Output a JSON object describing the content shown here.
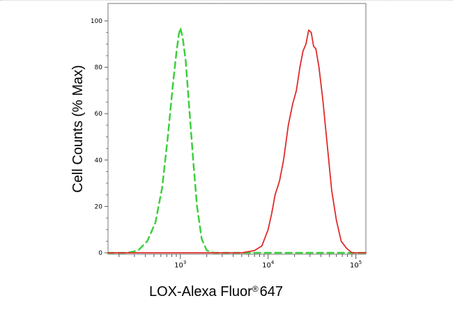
{
  "chart_data": {
    "type": "line",
    "xlabel": {
      "text": "LOX-Alexa Fluor",
      "registered": "®",
      "suffix": "647"
    },
    "ylabel": "Cell Counts (% Max)",
    "x_scale": "log",
    "xlim": [
      150,
      130000
    ],
    "ylim": [
      0,
      100
    ],
    "y_ticks": [
      "0",
      "20",
      "40",
      "60",
      "80",
      "100"
    ],
    "x_ticks": [
      {
        "value": 1000,
        "base": "10",
        "exp": "3"
      },
      {
        "value": 10000,
        "base": "10",
        "exp": "4"
      },
      {
        "value": 100000,
        "base": "10",
        "exp": "5"
      }
    ],
    "grid": false,
    "legend": "none",
    "series": [
      {
        "color": "#3ccf3c",
        "style": "dashed",
        "x": [
          150,
          250,
          330,
          420,
          520,
          620,
          720,
          820,
          900,
          960,
          1000,
          1060,
          1150,
          1260,
          1400,
          1550,
          1750,
          2000,
          2400,
          3000,
          5000,
          10000,
          50000,
          130000
        ],
        "y": [
          0,
          0,
          1,
          5,
          13,
          28,
          50,
          72,
          86,
          94,
          97,
          93,
          83,
          63,
          40,
          20,
          6,
          1,
          0,
          0,
          0,
          0,
          0,
          0
        ]
      },
      {
        "color": "#e02a2a",
        "style": "solid",
        "x": [
          150,
          3000,
          5000,
          7000,
          8500,
          10000,
          11000,
          12000,
          13500,
          15000,
          17000,
          19000,
          21000,
          23000,
          25000,
          27000,
          29000,
          31000,
          33000,
          35000,
          38000,
          42000,
          47000,
          53000,
          60000,
          68000,
          78000,
          90000,
          130000
        ],
        "y": [
          0,
          0,
          0,
          1,
          3,
          10,
          17,
          25,
          31,
          40,
          55,
          64,
          70,
          80,
          87,
          90,
          96,
          95,
          89,
          88,
          80,
          66,
          47,
          27,
          14,
          5,
          2,
          0,
          0
        ]
      }
    ]
  }
}
